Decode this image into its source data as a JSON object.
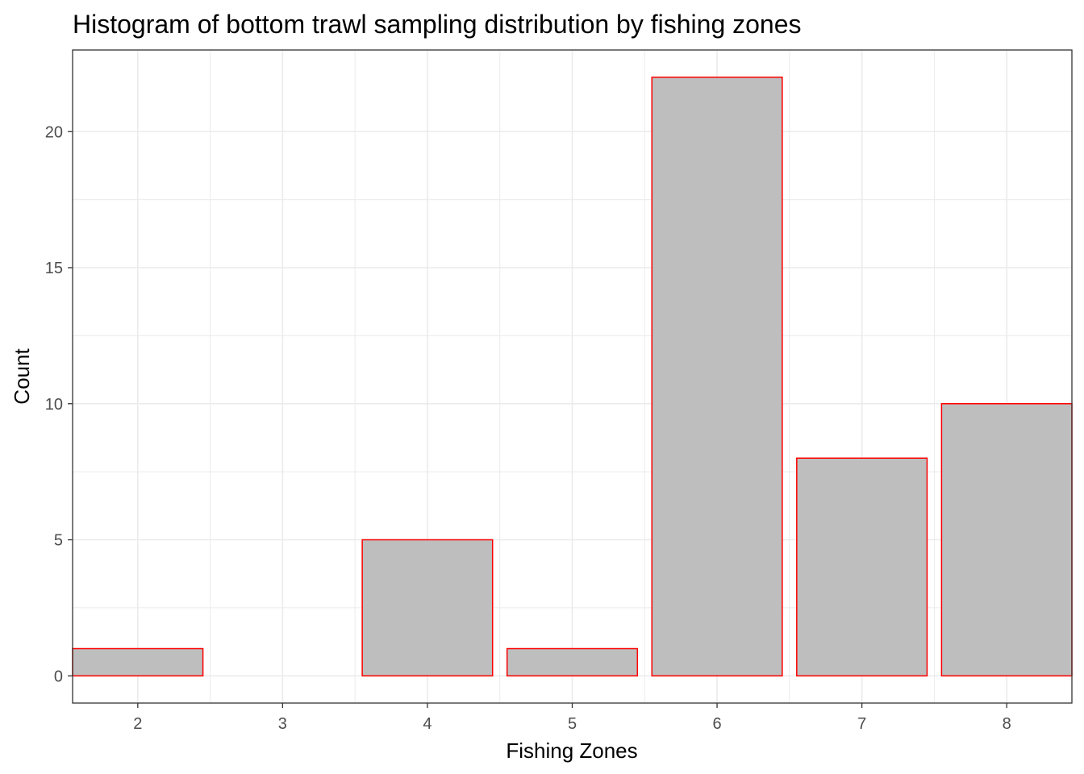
{
  "chart_data": {
    "type": "bar",
    "title": "Histogram of bottom trawl sampling distribution by fishing zones",
    "xlabel": "Fishing Zones",
    "ylabel": "Count",
    "categories": [
      "2",
      "3",
      "4",
      "5",
      "6",
      "7",
      "8"
    ],
    "x": [
      2,
      3,
      4,
      5,
      6,
      7,
      8
    ],
    "values": [
      1,
      0,
      5,
      1,
      22,
      8,
      10
    ],
    "xlim": [
      1.55,
      8.45
    ],
    "ylim": [
      -1.0,
      23.0
    ],
    "yticks": [
      0,
      5,
      10,
      15,
      20
    ],
    "grid": true,
    "legend": "none",
    "bar_fill": "#bebebe",
    "bar_outline": "#ff0000",
    "grid_color": "#ebebeb",
    "panel_border": "#333333"
  }
}
